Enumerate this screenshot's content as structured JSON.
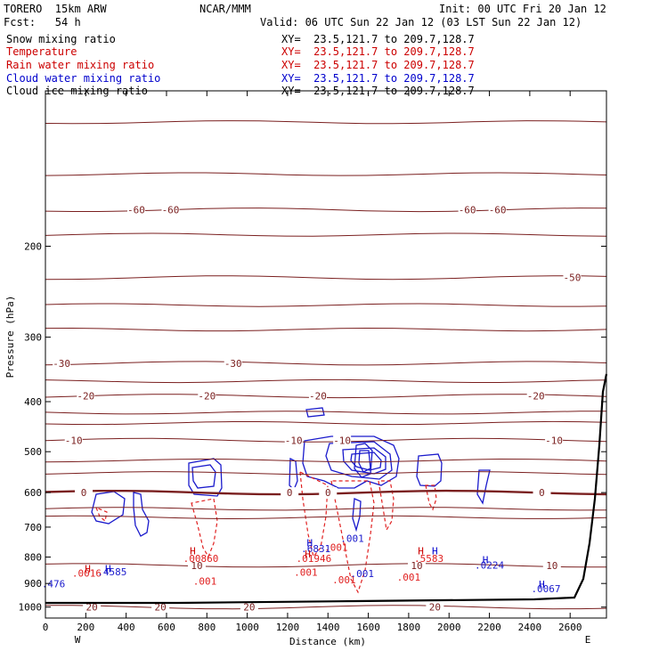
{
  "header": {
    "model": "TORERO  15km ARW",
    "org": "NCAR/MMM",
    "init": "Init: 00 UTC Fri 20 Jan 12",
    "fcst": "Fcst:   54 h",
    "valid": "Valid: 06 UTC Sun 22 Jan 12 (03 LST Sun 22 Jan 12)"
  },
  "fields": [
    {
      "name": "Snow mixing ratio",
      "xy": "XY=  23.5,121.7 to 209.7,128.7",
      "color": "#000000"
    },
    {
      "name": "Temperature",
      "xy": "XY=  23.5,121.7 to 209.7,128.7",
      "color": "#cc0000"
    },
    {
      "name": "Rain water mixing ratio",
      "xy": "XY=  23.5,121.7 to 209.7,128.7",
      "color": "#cc0000"
    },
    {
      "name": "Cloud water mixing ratio",
      "xy": "XY=  23.5,121.7 to 209.7,128.7",
      "color": "#0000cc"
    },
    {
      "name": "Cloud ice mixing ratio",
      "xy": "XY=  23.5,121.7 to 209.7,128.7",
      "color": "#000000"
    }
  ],
  "chart_data": {
    "type": "contour",
    "xlabel": "Distance (km)",
    "ylabel": "Pressure (hPa)",
    "xlim": [
      0,
      2780
    ],
    "ylim": [
      100,
      1050
    ],
    "y_scale": "log",
    "x_ticks": [
      0,
      200,
      400,
      600,
      800,
      1000,
      1200,
      1400,
      1600,
      1800,
      2000,
      2200,
      2400,
      2600
    ],
    "y_ticks": [
      200,
      300,
      400,
      500,
      600,
      700,
      800,
      900,
      1000
    ],
    "x_end_labels": {
      "left": "W",
      "right": "E"
    },
    "temperature_contours": [
      {
        "label": "-60",
        "p": 170,
        "x_labels": [
          450,
          620,
          2090,
          2240
        ]
      },
      {
        "label": "-50",
        "p": 230,
        "x_labels": [
          2610
        ]
      },
      {
        "label": "-30",
        "p": 337,
        "x_labels": [
          80,
          930
        ]
      },
      {
        "label": "-20",
        "p": 390,
        "x_labels": [
          200,
          800,
          1350,
          2430
        ]
      },
      {
        "label": "-10",
        "p": 475,
        "x_labels": [
          140,
          1230,
          1470,
          2520
        ]
      },
      {
        "label": "0",
        "p": 600,
        "x_labels": [
          190,
          1210,
          1400,
          2460
        ]
      },
      {
        "label": "10",
        "p": 830,
        "x_labels": [
          2510,
          750,
          1840
        ]
      },
      {
        "label": "20",
        "p": 1000,
        "x_labels": [
          230,
          570,
          1010,
          1930
        ]
      }
    ],
    "rain_labels": [
      {
        "text": ".01946",
        "x": 1330,
        "p": 818
      },
      {
        "text": ".001",
        "x": 1290,
        "p": 870
      },
      {
        "text": ".001",
        "x": 1480,
        "p": 900
      },
      {
        "text": ".001",
        "x": 790,
        "p": 905
      },
      {
        "text": ".001",
        "x": 1440,
        "p": 778
      },
      {
        "text": ".001",
        "x": 1800,
        "p": 888
      },
      {
        "text": ".0016",
        "x": 205,
        "p": 873
      },
      {
        "text": ".00860",
        "x": 770,
        "p": 817
      },
      {
        "text": ".5583",
        "x": 1900,
        "p": 817
      }
    ],
    "cloud_water_labels": [
      {
        "text": ".001",
        "x": 1520,
        "p": 748
      },
      {
        "text": ".6831",
        "x": 1340,
        "p": 783
      },
      {
        "text": ".0224",
        "x": 2200,
        "p": 842
      },
      {
        "text": ".0067",
        "x": 2480,
        "p": 935
      },
      {
        "text": ".001",
        "x": 1570,
        "p": 875
      },
      {
        "text": ".4585",
        "x": 330,
        "p": 868
      },
      {
        "text": ".476",
        "x": 40,
        "p": 915
      }
    ],
    "max_markers": [
      {
        "text": "H",
        "x": 210,
        "p": 856,
        "color": "#cc0000"
      },
      {
        "text": "H",
        "x": 310,
        "p": 856,
        "color": "#0000cc"
      },
      {
        "text": "H",
        "x": 730,
        "p": 790,
        "color": "#cc0000"
      },
      {
        "text": "H",
        "x": 1310,
        "p": 763,
        "color": "#0000cc"
      },
      {
        "text": "H",
        "x": 1300,
        "p": 802,
        "color": "#cc0000"
      },
      {
        "text": "H",
        "x": 1860,
        "p": 790,
        "color": "#cc0000"
      },
      {
        "text": "H",
        "x": 1930,
        "p": 790,
        "color": "#0000cc"
      },
      {
        "text": "H",
        "x": 2180,
        "p": 822,
        "color": "#0000cc"
      },
      {
        "text": "H",
        "x": 2460,
        "p": 918,
        "color": "#0000cc"
      }
    ]
  },
  "colors": {
    "temperature": "#7a1f1f",
    "rain": "#e02020",
    "cloud_water": "#1a1acc",
    "terrain": "#000000"
  }
}
